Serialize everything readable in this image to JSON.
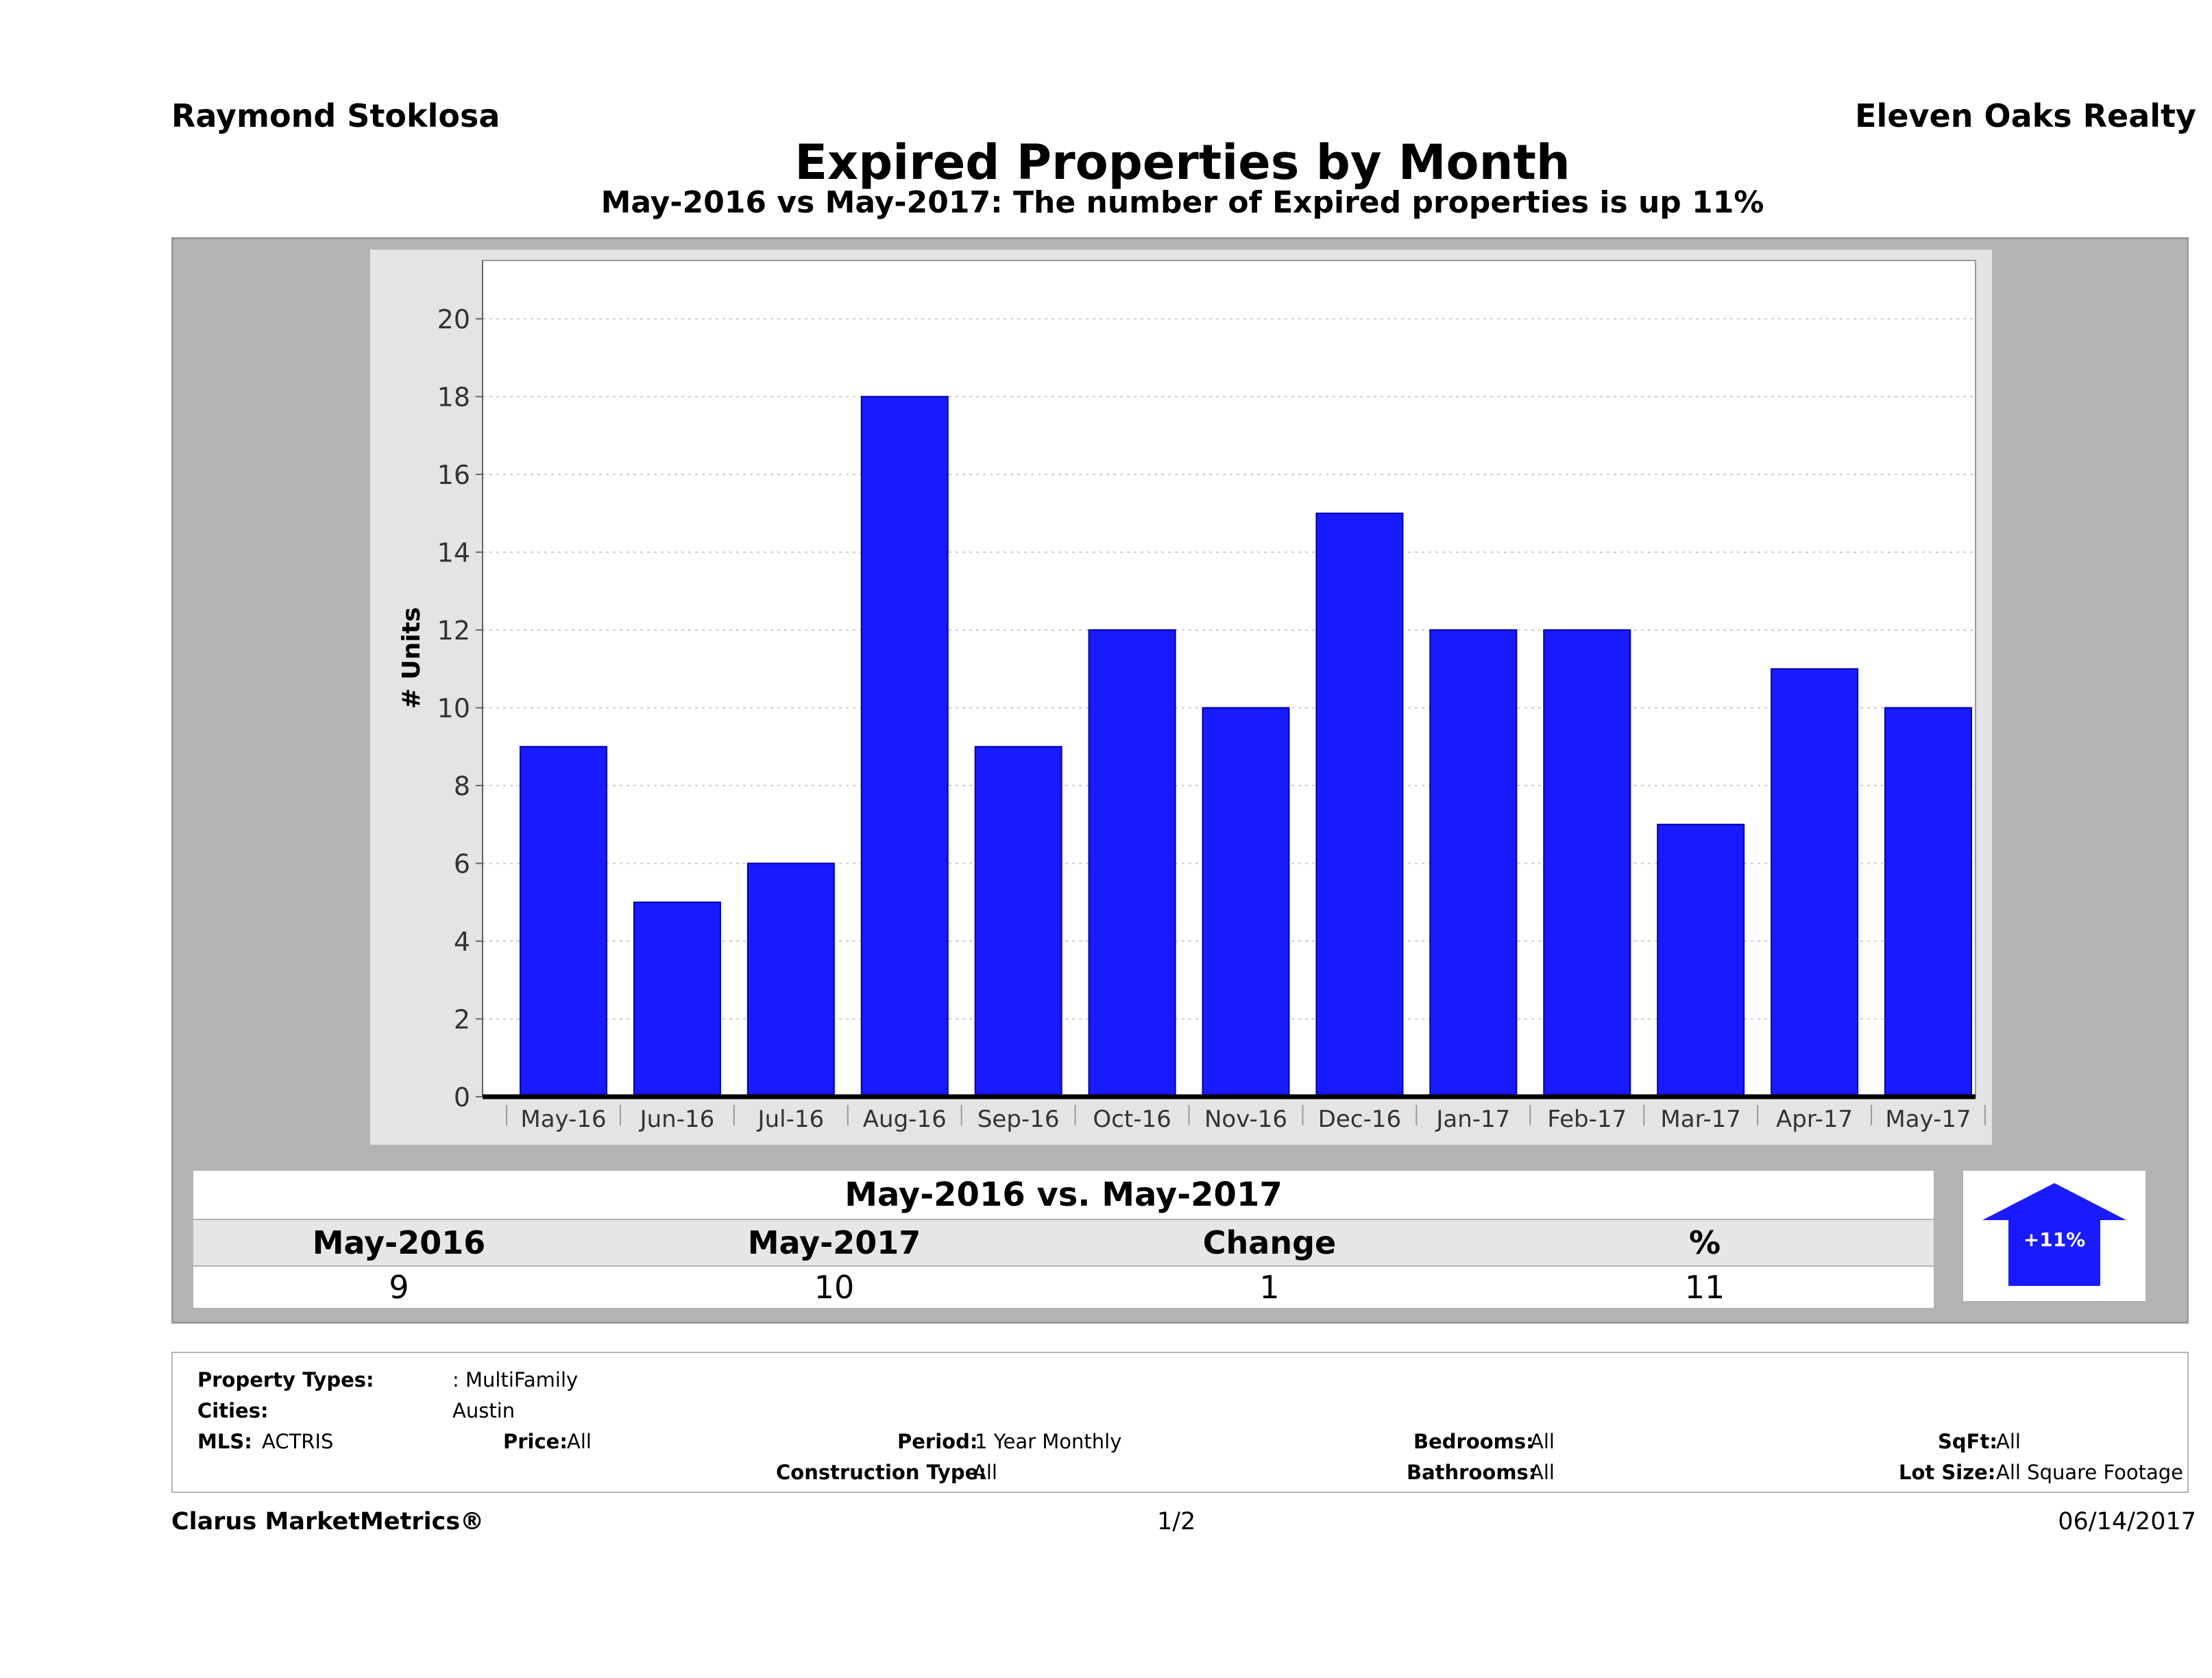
{
  "header": {
    "agent": "Raymond Stoklosa",
    "company": "Eleven Oaks Realty",
    "title": "Expired Properties by Month",
    "subtitle": "May-2016 vs May-2017: The number of Expired  properties is up 11%"
  },
  "chart_data": {
    "type": "bar",
    "categories": [
      "May-16",
      "Jun-16",
      "Jul-16",
      "Aug-16",
      "Sep-16",
      "Oct-16",
      "Nov-16",
      "Dec-16",
      "Jan-17",
      "Feb-17",
      "Mar-17",
      "Apr-17",
      "May-17"
    ],
    "values": [
      9,
      5,
      6,
      18,
      9,
      12,
      10,
      15,
      12,
      12,
      7,
      11,
      10
    ],
    "ylabel": "# Units",
    "ylim": [
      0,
      21.5
    ],
    "yticks": [
      0,
      2,
      4,
      6,
      8,
      10,
      12,
      14,
      16,
      18,
      20
    ],
    "grid": true,
    "bar_color": "#1a1aff"
  },
  "comparison": {
    "heading": "May-2016 vs. May-2017",
    "columns": [
      "May-2016",
      "May-2017",
      "Change",
      "%"
    ],
    "values": [
      "9",
      "10",
      "1",
      "11"
    ],
    "badge": "+11%",
    "badge_color": "#1a1aff"
  },
  "filters": {
    "property_types_label": "Property Types:",
    "property_types_value": ": MultiFamily",
    "cities_label": "Cities:",
    "cities_value": "Austin",
    "mls_label": "MLS:",
    "mls_value": "ACTRIS",
    "price_label": "Price:",
    "price_value": "All",
    "period_label": "Period:",
    "period_value": "1 Year Monthly",
    "construction_label": "Construction Type:",
    "construction_value": "All",
    "bedrooms_label": "Bedrooms:",
    "bedrooms_value": "All",
    "bathrooms_label": "Bathrooms:",
    "bathrooms_value": "All",
    "sqft_label": "SqFt:",
    "sqft_value": "All",
    "lot_label": "Lot Size:",
    "lot_value": "All Square Footage"
  },
  "footer": {
    "brand": "Clarus MarketMetrics®",
    "page": "1/2",
    "date": "06/14/2017"
  }
}
